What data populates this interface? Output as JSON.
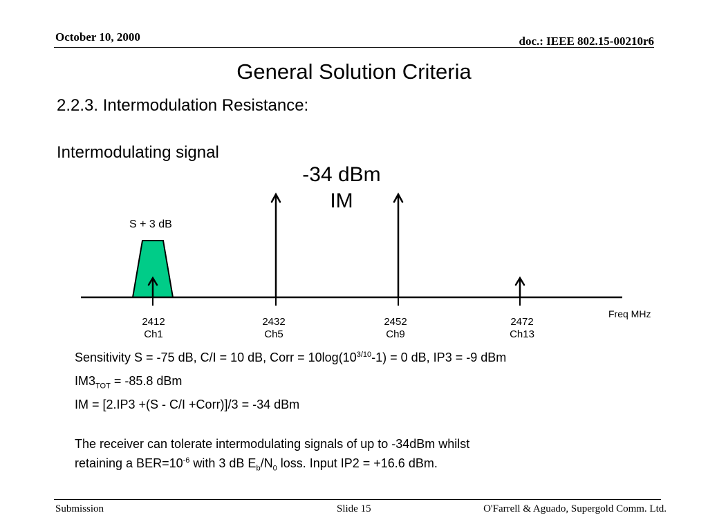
{
  "header": {
    "date": "October 10, 2000",
    "doc_id": "doc.: IEEE 802.15-00210r6"
  },
  "title": "General Solution Criteria",
  "subtitle": "2.2.3. Intermodulation Resistance:",
  "diagram": {
    "im_label": "Intermodulating signal",
    "im_level_line1": "-34 dBm",
    "im_level_line2": "IM",
    "desired_label": "S + 3 dB",
    "axis_unit": "Freq MHz",
    "channels": [
      {
        "freq": "2412",
        "ch": "Ch1"
      },
      {
        "freq": "2432",
        "ch": "Ch5"
      },
      {
        "freq": "2452",
        "ch": "Ch9"
      },
      {
        "freq": "2472",
        "ch": "Ch13"
      }
    ],
    "colors": {
      "desired_signal_fill": "#00cc88"
    }
  },
  "body": {
    "line1_a": "Sensitivity S = -75 dB, C/I = 10 dB, Corr = 10log(10",
    "line1_sup": "3/10",
    "line1_b": "-1) = 0 dB, IP3 = -9 dBm",
    "line2_a": "IM3",
    "line2_sub": "TOT",
    "line2_b": " = -85.8 dBm",
    "line3": "IM = [2.IP3 +(S - C/I +Corr)]/3 = -34 dBm",
    "line4": "The receiver can tolerate intermodulating signals of up to -34dBm whilst",
    "line5_a": "retaining a BER=10",
    "line5_sup": "-6",
    "line5_b": " with 3 dB E",
    "line5_sub1": "b",
    "line5_c": "/N",
    "line5_sub2": "0",
    "line5_d": " loss. Input IP2 = +16.6 dBm."
  },
  "footer": {
    "left": "Submission",
    "center": "Slide 15",
    "right": "O'Farrell & Aguado, Supergold Comm. Ltd."
  }
}
